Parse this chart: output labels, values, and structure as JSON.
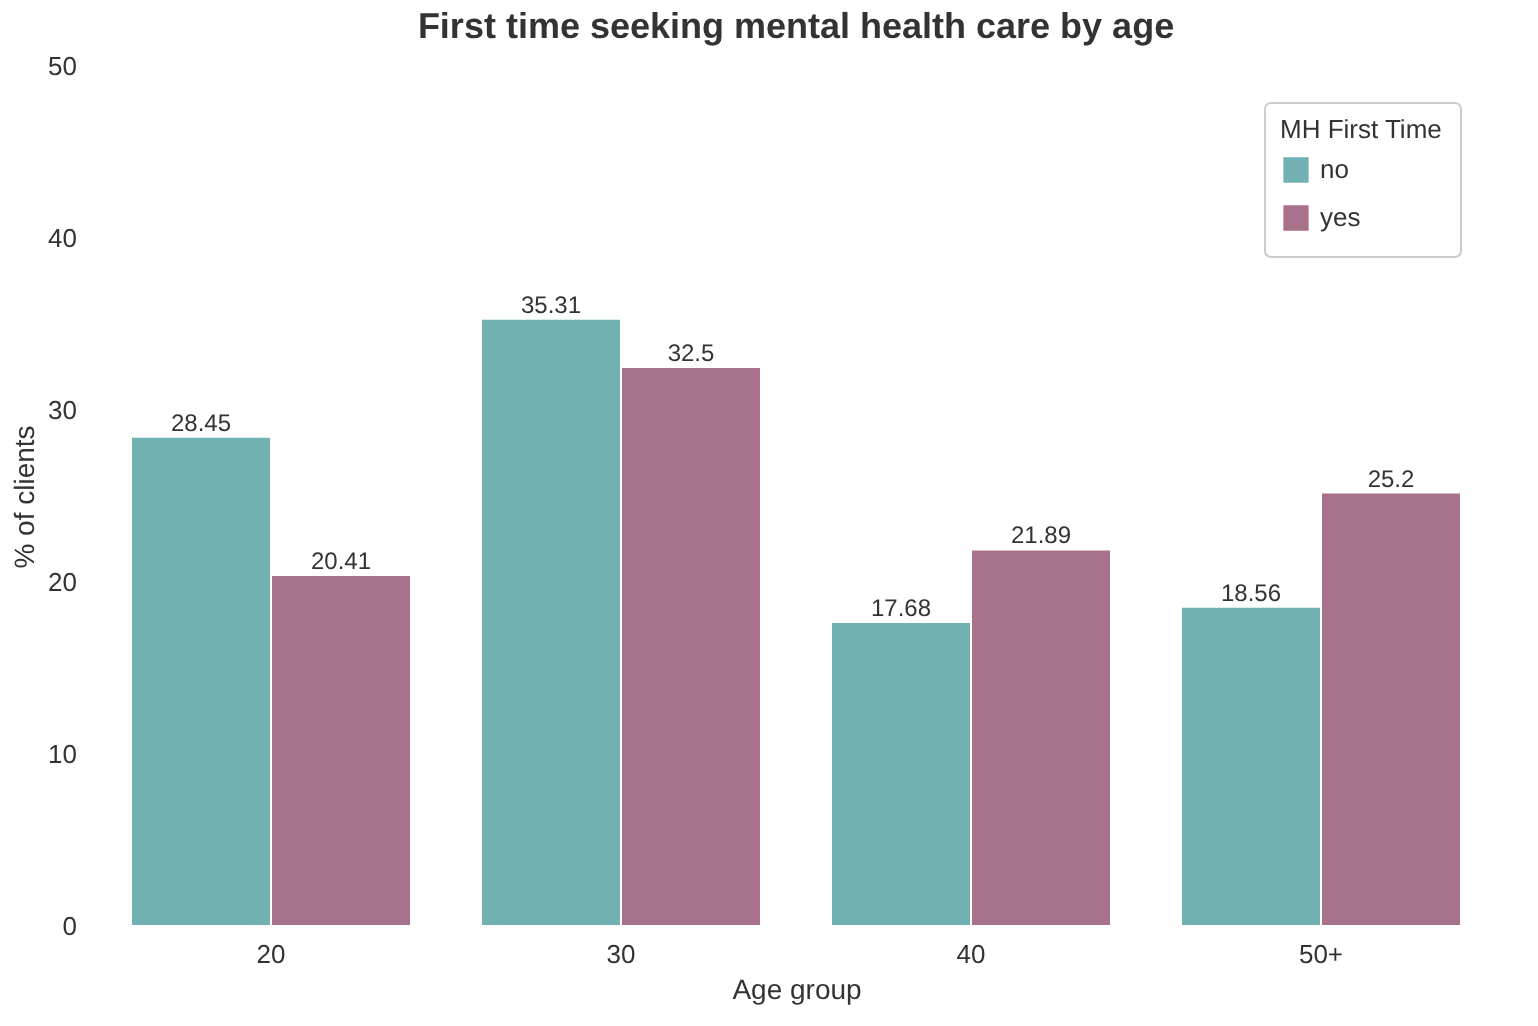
{
  "chart_data": {
    "type": "bar",
    "title": "First time seeking mental health care by age",
    "xlabel": "Age group",
    "ylabel": "% of clients",
    "legend_title": "MH First Time",
    "categories": [
      "20",
      "30",
      "40",
      "50+"
    ],
    "series": [
      {
        "name": "no",
        "color": "#72b1b2",
        "values": [
          28.45,
          35.31,
          17.68,
          18.56
        ]
      },
      {
        "name": "yes",
        "color": "#a8718c",
        "values": [
          20.41,
          32.5,
          21.89,
          25.2
        ]
      }
    ],
    "ylim": [
      0,
      50
    ],
    "yticks": [
      0,
      10,
      20,
      30,
      40,
      50
    ],
    "grid": false,
    "legend": "top right",
    "data_labels": true
  }
}
